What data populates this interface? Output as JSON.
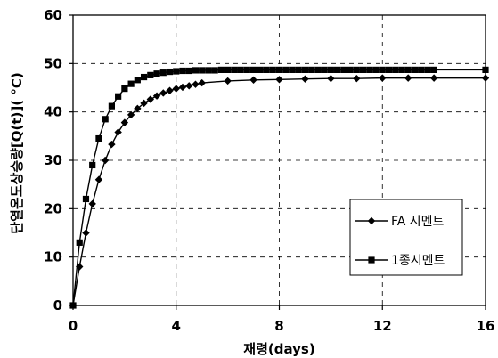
{
  "chart_data": {
    "type": "line",
    "xlabel": "재령(days)",
    "ylabel": "단열온도상승량[Q(t)]( °C)",
    "xlim": [
      0,
      16
    ],
    "ylim": [
      0,
      60
    ],
    "xticks": [
      0,
      4,
      8,
      12,
      16
    ],
    "yticks": [
      0,
      10,
      20,
      30,
      40,
      50,
      60
    ],
    "grid": "dashed",
    "legend_position": "lower-right",
    "series": [
      {
        "name": "FA 시멘트",
        "marker": "diamond",
        "color": "#000000",
        "x": [
          0,
          0.25,
          0.5,
          0.75,
          1.0,
          1.25,
          1.5,
          1.75,
          2.0,
          2.25,
          2.5,
          2.75,
          3.0,
          3.25,
          3.5,
          3.75,
          4.0,
          4.25,
          4.5,
          4.75,
          5.0,
          6.0,
          7.0,
          8.0,
          9.0,
          10.0,
          11.0,
          12.0,
          13.0,
          14.0,
          16.0
        ],
        "values": [
          0,
          8,
          15,
          21,
          26,
          30,
          33.3,
          35.8,
          37.8,
          39.4,
          40.7,
          41.8,
          42.6,
          43.3,
          43.9,
          44.4,
          44.8,
          45.1,
          45.4,
          45.7,
          46.0,
          46.4,
          46.6,
          46.7,
          46.8,
          46.9,
          46.9,
          47.0,
          47.0,
          47.0,
          47.0
        ]
      },
      {
        "name": "1종시멘트",
        "marker": "square",
        "color": "#000000",
        "x": [
          0,
          0.25,
          0.5,
          0.75,
          1.0,
          1.25,
          1.5,
          1.75,
          2.0,
          2.25,
          2.5,
          2.75,
          3.0,
          3.25,
          3.5,
          3.75,
          4.0,
          4.25,
          4.5,
          4.75,
          5.0,
          5.25,
          5.5,
          5.75,
          6.0,
          6.25,
          6.5,
          6.75,
          7.0,
          7.25,
          7.5,
          7.75,
          8.0,
          8.25,
          8.5,
          8.75,
          9.0,
          9.25,
          9.5,
          9.75,
          10.0,
          10.25,
          10.5,
          10.75,
          11.0,
          11.25,
          11.5,
          11.75,
          12.0,
          12.25,
          12.5,
          12.75,
          13.0,
          13.25,
          13.5,
          13.75,
          14.0,
          16.0
        ],
        "values": [
          0,
          13,
          22,
          29,
          34.5,
          38.5,
          41.2,
          43.2,
          44.8,
          45.8,
          46.6,
          47.2,
          47.6,
          47.9,
          48.1,
          48.3,
          48.4,
          48.5,
          48.5,
          48.6,
          48.6,
          48.6,
          48.6,
          48.7,
          48.7,
          48.7,
          48.7,
          48.7,
          48.7,
          48.7,
          48.7,
          48.7,
          48.7,
          48.7,
          48.7,
          48.7,
          48.7,
          48.7,
          48.7,
          48.7,
          48.7,
          48.7,
          48.7,
          48.7,
          48.7,
          48.7,
          48.7,
          48.7,
          48.7,
          48.7,
          48.7,
          48.7,
          48.7,
          48.7,
          48.7,
          48.7,
          48.7,
          48.7
        ]
      }
    ]
  }
}
